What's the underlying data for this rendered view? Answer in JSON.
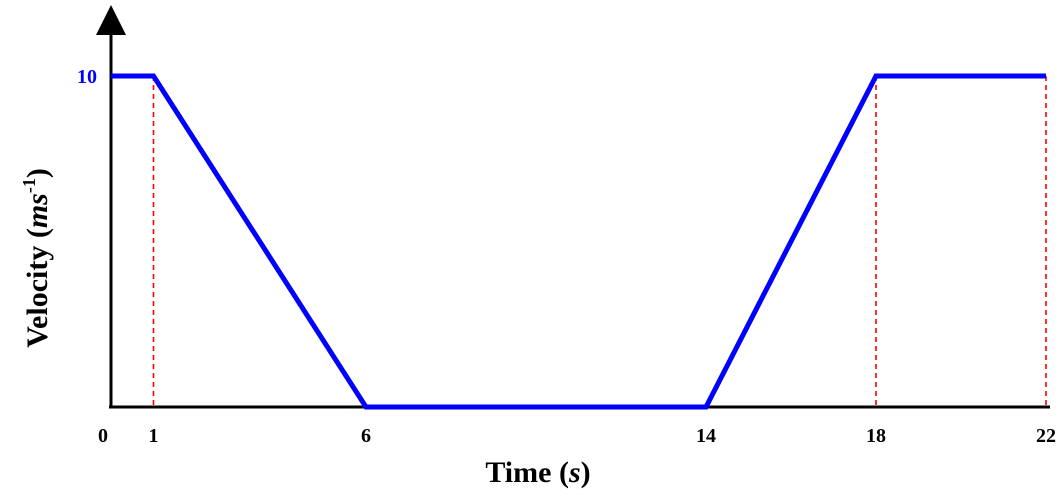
{
  "chart_data": {
    "type": "line",
    "x": [
      0,
      1,
      6,
      14,
      18,
      22
    ],
    "y": [
      10,
      10,
      0,
      0,
      10,
      10
    ],
    "xlim": [
      0,
      22
    ],
    "ylim": [
      0,
      10
    ],
    "x_tick_labels": [
      "0",
      "1",
      "6",
      "14",
      "18",
      "22"
    ],
    "y_tick_labels": [
      "10"
    ],
    "xlabel": {
      "prefix": "Time (",
      "unit": "s",
      "suffix": ")"
    },
    "ylabel": {
      "prefix": "Velocity (",
      "unit": "ms",
      "exponent": "-1",
      "suffix": ")"
    },
    "guide_lines_x": [
      1,
      18,
      22
    ],
    "grid": false,
    "legend": "none",
    "colors": {
      "line": "#0000ff",
      "guide": "#ff0000",
      "axis": "#000000",
      "y_tick": "#0000ff"
    }
  }
}
